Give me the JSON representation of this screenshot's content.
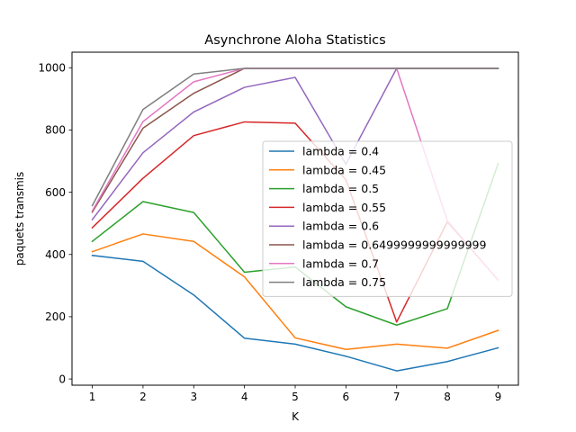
{
  "chart_data": {
    "type": "line",
    "title": "Asynchrone Aloha Statistics",
    "xlabel": "K",
    "ylabel": "paquets transmis",
    "x": [
      1,
      2,
      3,
      4,
      5,
      6,
      7,
      8,
      9
    ],
    "xticks": [
      "1",
      "2",
      "3",
      "4",
      "5",
      "6",
      "7",
      "8",
      "9"
    ],
    "yticks": [
      "0",
      "200",
      "400",
      "600",
      "800",
      "1000"
    ],
    "ytick_values": [
      0,
      200,
      400,
      600,
      800,
      1000
    ],
    "xlim": [
      0.6,
      9.4
    ],
    "ylim": [
      -20,
      1050
    ],
    "grid": false,
    "legend_position": "center-right",
    "series": [
      {
        "name": "lambda = 0.4",
        "color": "#1f77b4",
        "values": [
          397,
          378,
          270,
          131,
          112,
          73,
          26,
          56,
          100
        ]
      },
      {
        "name": "lambda = 0.45",
        "color": "#ff7f0e",
        "values": [
          409,
          466,
          442,
          328,
          132,
          95,
          112,
          99,
          156
        ]
      },
      {
        "name": "lambda = 0.5",
        "color": "#2ca02c",
        "values": [
          442,
          570,
          535,
          343,
          360,
          232,
          173,
          226,
          692
        ]
      },
      {
        "name": "lambda = 0.55",
        "color": "#d62728",
        "values": [
          486,
          645,
          782,
          826,
          822,
          640,
          183,
          505,
          318
        ]
      },
      {
        "name": "lambda = 0.6",
        "color": "#9467bd",
        "values": [
          512,
          727,
          858,
          937,
          969,
          690,
          998,
          998,
          998
        ]
      },
      {
        "name": "lambda = 0.6499999999999999",
        "color": "#8c564b",
        "values": [
          536,
          806,
          918,
          998,
          998,
          998,
          998,
          998,
          998
        ]
      },
      {
        "name": "lambda = 0.7",
        "color": "#e377c2",
        "values": [
          540,
          827,
          955,
          998,
          998,
          998,
          998,
          508,
          318
        ]
      },
      {
        "name": "lambda = 0.75",
        "color": "#7f7f7f",
        "values": [
          557,
          866,
          980,
          998,
          998,
          998,
          998,
          998,
          998
        ]
      }
    ]
  }
}
